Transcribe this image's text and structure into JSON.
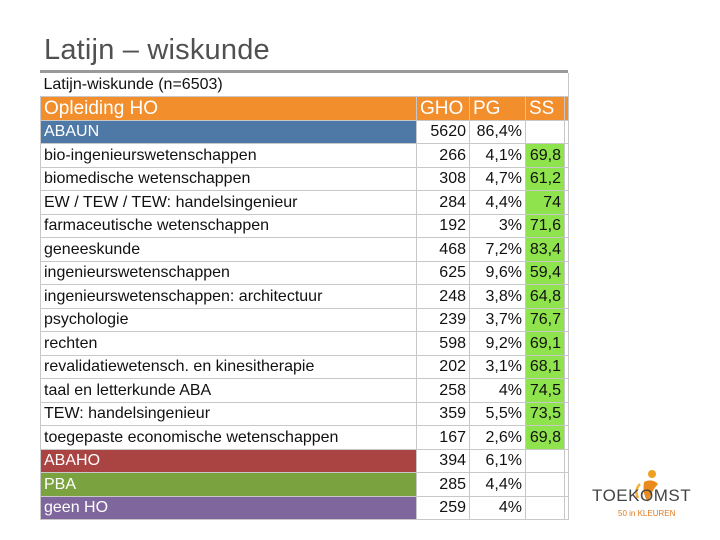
{
  "slide": {
    "title": "Latijn – wiskunde"
  },
  "table": {
    "caption": "Latijn-wiskunde (n=6503)",
    "headers": {
      "name": "Opleiding HO",
      "gho": "GHO",
      "pg": "PG",
      "ss": "SS"
    },
    "rows": [
      {
        "name": "ABAUN",
        "gho": "5620",
        "pg": "86,4%",
        "ss": "",
        "group": "blue"
      },
      {
        "name": "bio-ingenieurswetenschappen",
        "gho": "266",
        "pg": "4,1%",
        "ss": "69,8",
        "group": ""
      },
      {
        "name": "biomedische wetenschappen",
        "gho": "308",
        "pg": "4,7%",
        "ss": "61,2",
        "group": ""
      },
      {
        "name": "EW / TEW / TEW: handelsingenieur",
        "gho": "284",
        "pg": "4,4%",
        "ss": "74",
        "group": ""
      },
      {
        "name": "farmaceutische wetenschappen",
        "gho": "192",
        "pg": "3%",
        "ss": "71,6",
        "group": ""
      },
      {
        "name": "geneeskunde",
        "gho": "468",
        "pg": "7,2%",
        "ss": "83,4",
        "group": ""
      },
      {
        "name": "ingenieurswetenschappen",
        "gho": "625",
        "pg": "9,6%",
        "ss": "59,4",
        "group": ""
      },
      {
        "name": "ingenieurswetenschappen: architectuur",
        "gho": "248",
        "pg": "3,8%",
        "ss": "64,8",
        "group": ""
      },
      {
        "name": "psychologie",
        "gho": "239",
        "pg": "3,7%",
        "ss": "76,7",
        "group": ""
      },
      {
        "name": "rechten",
        "gho": "598",
        "pg": "9,2%",
        "ss": "69,1",
        "group": ""
      },
      {
        "name": "revalidatiewetensch. en kinesitherapie",
        "gho": "202",
        "pg": "3,1%",
        "ss": "68,1",
        "group": ""
      },
      {
        "name": "taal en letterkunde ABA",
        "gho": "258",
        "pg": "4%",
        "ss": "74,5",
        "group": ""
      },
      {
        "name": "TEW: handelsingenieur",
        "gho": "359",
        "pg": "5,5%",
        "ss": "73,5",
        "group": ""
      },
      {
        "name": "toegepaste economische wetenschappen",
        "gho": "167",
        "pg": "2,6%",
        "ss": "69,8",
        "group": ""
      },
      {
        "name": "ABAHO",
        "gho": "394",
        "pg": "6,1%",
        "ss": "",
        "group": "red"
      },
      {
        "name": "PBA",
        "gho": "285",
        "pg": "4,4%",
        "ss": "",
        "group": "green"
      },
      {
        "name": "geen HO",
        "gho": "259",
        "pg": "4%",
        "ss": "",
        "group": "purple"
      }
    ]
  },
  "logo": {
    "text": "TOEKOMST",
    "subtext": "50 in KLEUREN"
  },
  "colors": {
    "header_orange": "#f28e2c",
    "abaun_blue": "#4e79a7",
    "abaho_red": "#a94442",
    "pba_green": "#7aa23f",
    "geenho_purple": "#7f669c",
    "ss_green": "#8fe34c"
  }
}
